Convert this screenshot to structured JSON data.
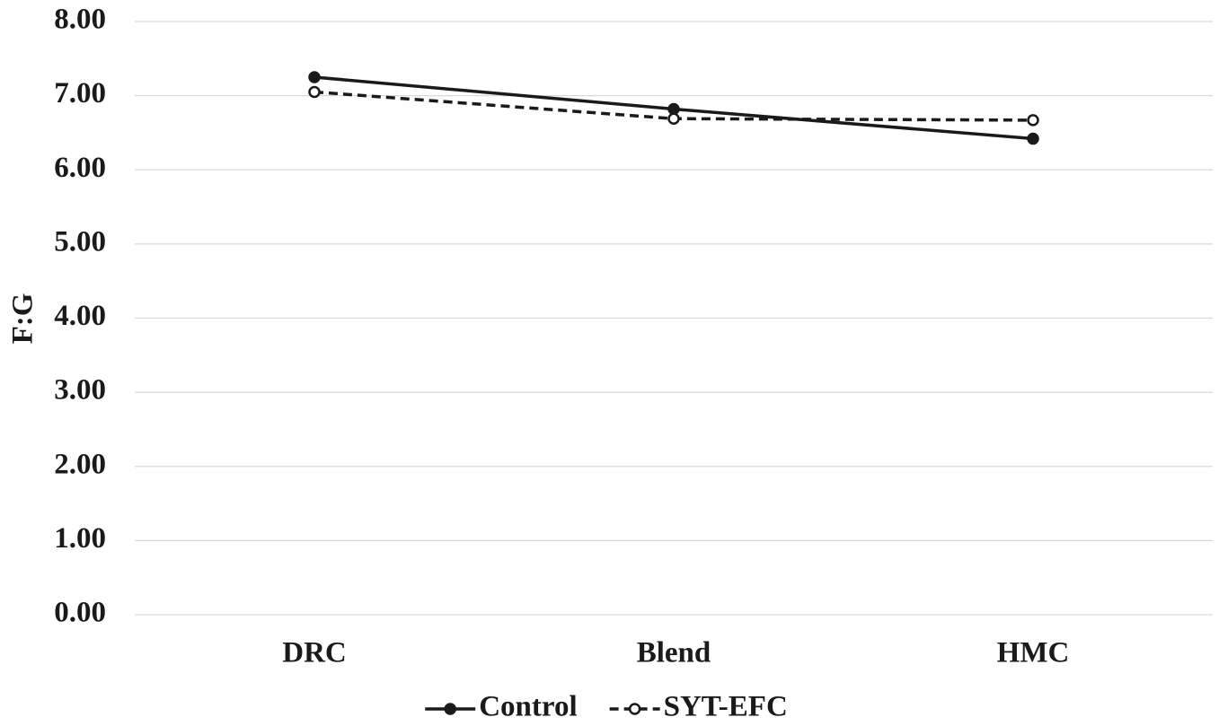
{
  "chart_data": {
    "type": "line",
    "y_label": "F:G",
    "categories": [
      "DRC",
      "Blend",
      "HMC"
    ],
    "series": [
      {
        "name": "Control",
        "color": "#1a1a1a",
        "linestyle": "solid",
        "marker": "filled",
        "values": [
          7.25,
          6.82,
          6.42
        ]
      },
      {
        "name": "SYT-EFC",
        "color": "#1a1a1a",
        "linestyle": "dashed",
        "marker": "open",
        "values": [
          7.05,
          6.69,
          6.67
        ]
      }
    ],
    "ylim": [
      0,
      8
    ],
    "yticks": [
      {
        "value": 0,
        "label": "0.00"
      },
      {
        "value": 1,
        "label": "1.00"
      },
      {
        "value": 2,
        "label": "2.00"
      },
      {
        "value": 3,
        "label": "3.00"
      },
      {
        "value": 4,
        "label": "4.00"
      },
      {
        "value": 5,
        "label": "5.00"
      },
      {
        "value": 6,
        "label": "6.00"
      },
      {
        "value": 7,
        "label": "7.00"
      },
      {
        "value": 8,
        "label": "8.00"
      }
    ],
    "grid": true,
    "legend": "bottom"
  }
}
